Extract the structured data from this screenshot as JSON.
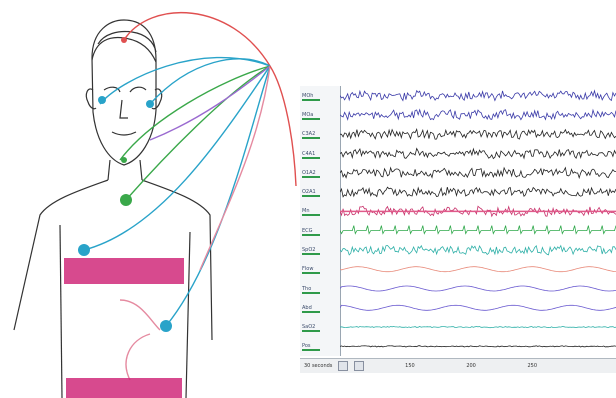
{
  "recording": {
    "channels": [
      {
        "label": "MOh",
        "color": "#3a3aa8"
      },
      {
        "label": "MOa",
        "color": "#3a3aa8"
      },
      {
        "label": "C3A2",
        "color": "#222222"
      },
      {
        "label": "C4A1",
        "color": "#222222"
      },
      {
        "label": "O1A2",
        "color": "#222222"
      },
      {
        "label": "O2A1",
        "color": "#222222"
      },
      {
        "label": "Mn",
        "color": "#c8306a"
      },
      {
        "label": "ECG",
        "color": "#2fa84a"
      },
      {
        "label": "SpO2",
        "color": "#2fb0a8"
      },
      {
        "label": "Flow",
        "color": "#e88a7a"
      },
      {
        "label": "Tho",
        "color": "#6a5ad0"
      },
      {
        "label": "Abd",
        "color": "#6a5ad0"
      },
      {
        "label": "SaO2",
        "color": "#2fb0a8"
      },
      {
        "label": "Pos",
        "color": "#222222"
      }
    ],
    "footer": {
      "zoom_label": "30 seconds",
      "time_marks": [
        "150",
        "200",
        "250"
      ]
    }
  },
  "colors": {
    "electrode_cyan": "#29a3c9",
    "electrode_green": "#3aa84a",
    "belt_magenta": "#d02a7a",
    "wire_red": "#e05050",
    "wire_purple": "#9a6ad0"
  }
}
